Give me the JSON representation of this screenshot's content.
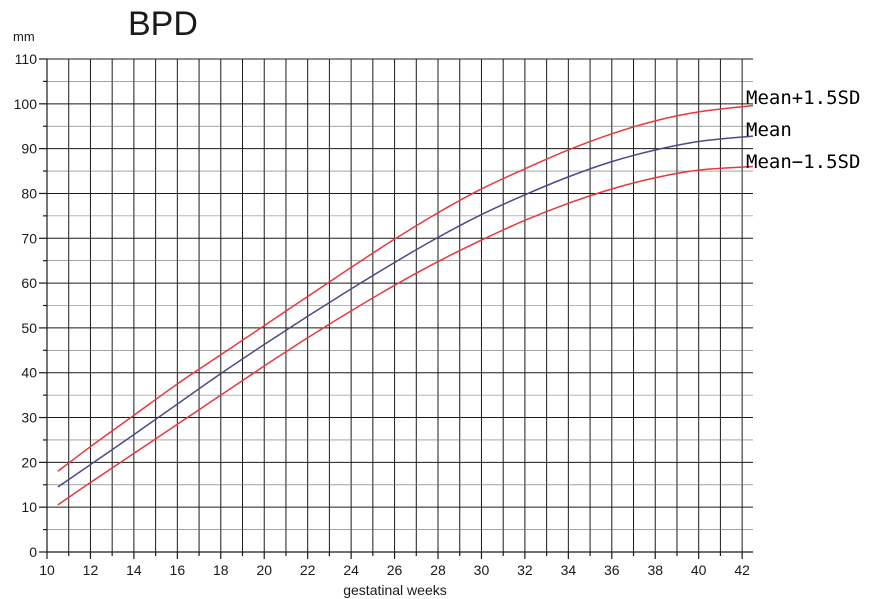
{
  "chart_data": {
    "type": "line",
    "title": "BPD",
    "ylabel": "mm",
    "xlabel": "gestatinal weeks",
    "xlim": [
      10,
      42.5
    ],
    "ylim": [
      0,
      110
    ],
    "x_ticks": [
      10,
      12,
      14,
      16,
      18,
      20,
      22,
      24,
      26,
      28,
      30,
      32,
      34,
      36,
      38,
      40,
      42
    ],
    "y_ticks": [
      0,
      10,
      20,
      30,
      40,
      50,
      60,
      70,
      80,
      90,
      100,
      110
    ],
    "grid": true,
    "legend_placement": "right (labels at line ends)",
    "series": [
      {
        "name": "Mean+1.5SD",
        "color": "#e8383d",
        "x": [
          10.5,
          12,
          14,
          16,
          18,
          20,
          22,
          24,
          26,
          28,
          30,
          32,
          34,
          36,
          38,
          40,
          42.5
        ],
        "values": [
          18,
          23.5,
          30.5,
          37.5,
          44,
          50.5,
          57,
          63.5,
          69.8,
          75.7,
          81,
          85.5,
          89.7,
          93.3,
          96.2,
          98.2,
          99.6
        ]
      },
      {
        "name": "Mean",
        "color": "#4a4a8a",
        "x": [
          10.5,
          12,
          14,
          16,
          18,
          20,
          22,
          24,
          26,
          28,
          30,
          32,
          34,
          36,
          38,
          40,
          42.5
        ],
        "values": [
          14.5,
          19.5,
          26.2,
          33,
          39.8,
          46.3,
          52.6,
          58.7,
          64.6,
          70.2,
          75.3,
          79.7,
          83.7,
          87.1,
          89.7,
          91.6,
          92.8
        ]
      },
      {
        "name": "Mean−1.5SD",
        "color": "#e8383d",
        "x": [
          10.5,
          12,
          14,
          16,
          18,
          20,
          22,
          24,
          26,
          28,
          30,
          32,
          34,
          36,
          38,
          40,
          42.5
        ],
        "values": [
          10.5,
          15.5,
          22,
          28.5,
          35,
          41.5,
          47.8,
          53.8,
          59.5,
          64.8,
          69.6,
          74,
          77.8,
          81,
          83.5,
          85.2,
          86
        ]
      }
    ]
  }
}
